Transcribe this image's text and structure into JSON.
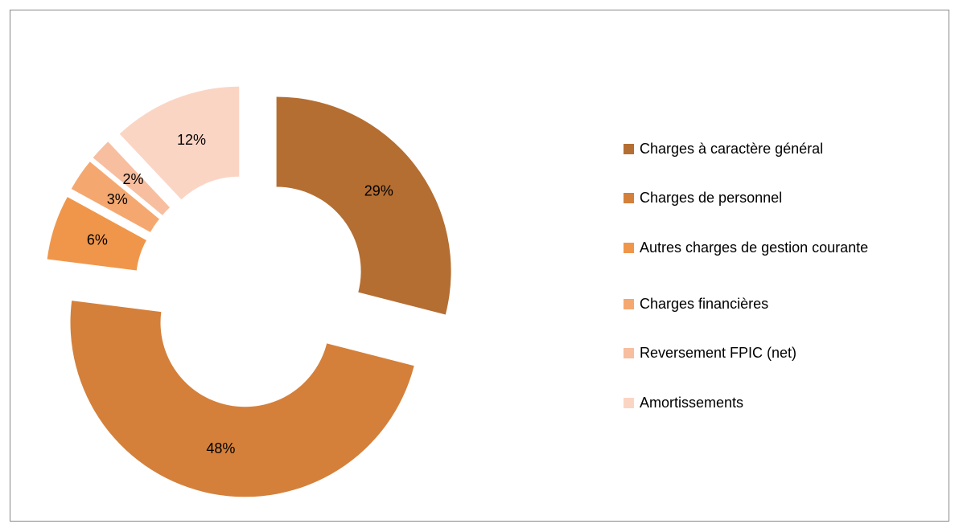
{
  "chart_data": {
    "type": "donut",
    "categories": [
      "Charges à caractère général",
      "Charges de personnel",
      "Autres charges de gestion courante",
      "Charges financières",
      "Reversement FPIC (net)",
      "Amortissements"
    ],
    "values": [
      29,
      48,
      6,
      3,
      2,
      12
    ],
    "value_labels": [
      "29%",
      "48%",
      "6%",
      "3%",
      "2%",
      "12%"
    ],
    "colors": [
      "#b46e32",
      "#d4803b",
      "#f0964a",
      "#f4a870",
      "#f7bea0",
      "#fbd5c4"
    ],
    "legend": "right"
  }
}
